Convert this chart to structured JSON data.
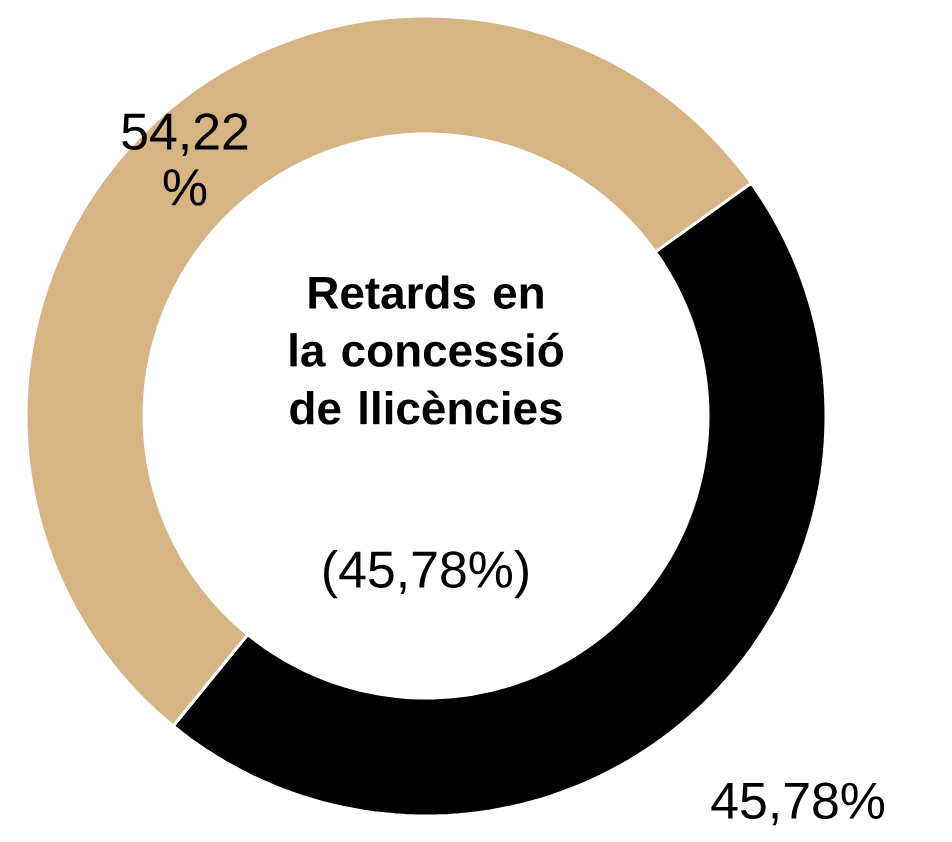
{
  "chart_data": {
    "type": "donut",
    "title": "Retards en la concessió de llicències",
    "subtitle": "(45,78%)",
    "categories": [
      null,
      null
    ],
    "values": [
      45.78,
      54.22
    ],
    "colors": [
      "#000000",
      "#d6b483"
    ],
    "value_labels": [
      "45,78%",
      "54,22 %"
    ]
  }
}
